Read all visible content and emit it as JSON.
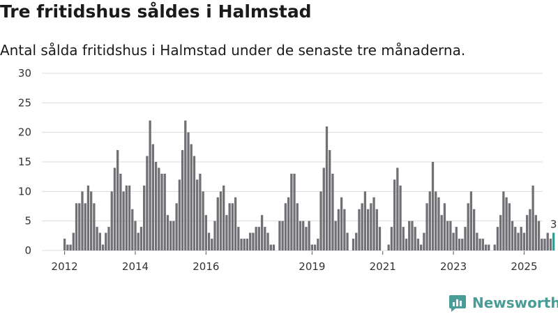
{
  "title": "Tre fritidshus såldes i Halmstad",
  "subtitle": "Antal sålda fritidshus i Halmstad under de senaste tre månaderna.",
  "brand": {
    "name": "Newsworthy",
    "color": "#4a9d96",
    "icon": "newsworthy-logo-icon"
  },
  "chart_data": {
    "type": "bar",
    "title": "Antal sålda fritidshus i Halmstad under de senaste tre månaderna.",
    "xlabel": "",
    "ylabel": "",
    "ylim": [
      0,
      30
    ],
    "yticks": [
      "0",
      "5",
      "10",
      "15",
      "20",
      "25",
      "30"
    ],
    "xtick_labels": [
      "2012",
      "2014",
      "2016",
      "2019",
      "2021",
      "2023",
      "2025"
    ],
    "grid": true,
    "bar_color": "#717075",
    "highlight_color": "#3a9b94",
    "highlight_label": "3",
    "values": [
      2,
      1,
      1,
      3,
      8,
      8,
      10,
      8,
      11,
      10,
      8,
      4,
      3,
      1,
      3,
      4,
      10,
      14,
      17,
      13,
      10,
      11,
      11,
      7,
      5,
      3,
      4,
      11,
      16,
      22,
      18,
      15,
      14,
      13,
      13,
      6,
      5,
      5,
      8,
      12,
      17,
      22,
      20,
      18,
      16,
      12,
      13,
      10,
      6,
      3,
      2,
      5,
      9,
      10,
      11,
      6,
      8,
      8,
      9,
      4,
      2,
      2,
      2,
      3,
      3,
      4,
      4,
      6,
      4,
      3,
      1,
      1,
      0,
      5,
      5,
      8,
      9,
      13,
      13,
      8,
      5,
      5,
      4,
      5,
      1,
      1,
      2,
      10,
      14,
      21,
      17,
      13,
      5,
      7,
      9,
      7,
      3,
      0,
      2,
      3,
      7,
      8,
      10,
      7,
      8,
      9,
      7,
      4,
      0,
      0,
      1,
      4,
      12,
      14,
      11,
      4,
      2,
      5,
      5,
      4,
      2,
      1,
      3,
      8,
      10,
      15,
      10,
      9,
      6,
      8,
      5,
      5,
      3,
      4,
      2,
      2,
      4,
      8,
      10,
      7,
      3,
      2,
      2,
      1,
      1,
      0,
      1,
      4,
      6,
      10,
      9,
      8,
      5,
      4,
      3,
      4,
      3,
      6,
      7,
      11,
      6,
      5,
      2,
      2,
      3,
      2,
      3
    ]
  }
}
